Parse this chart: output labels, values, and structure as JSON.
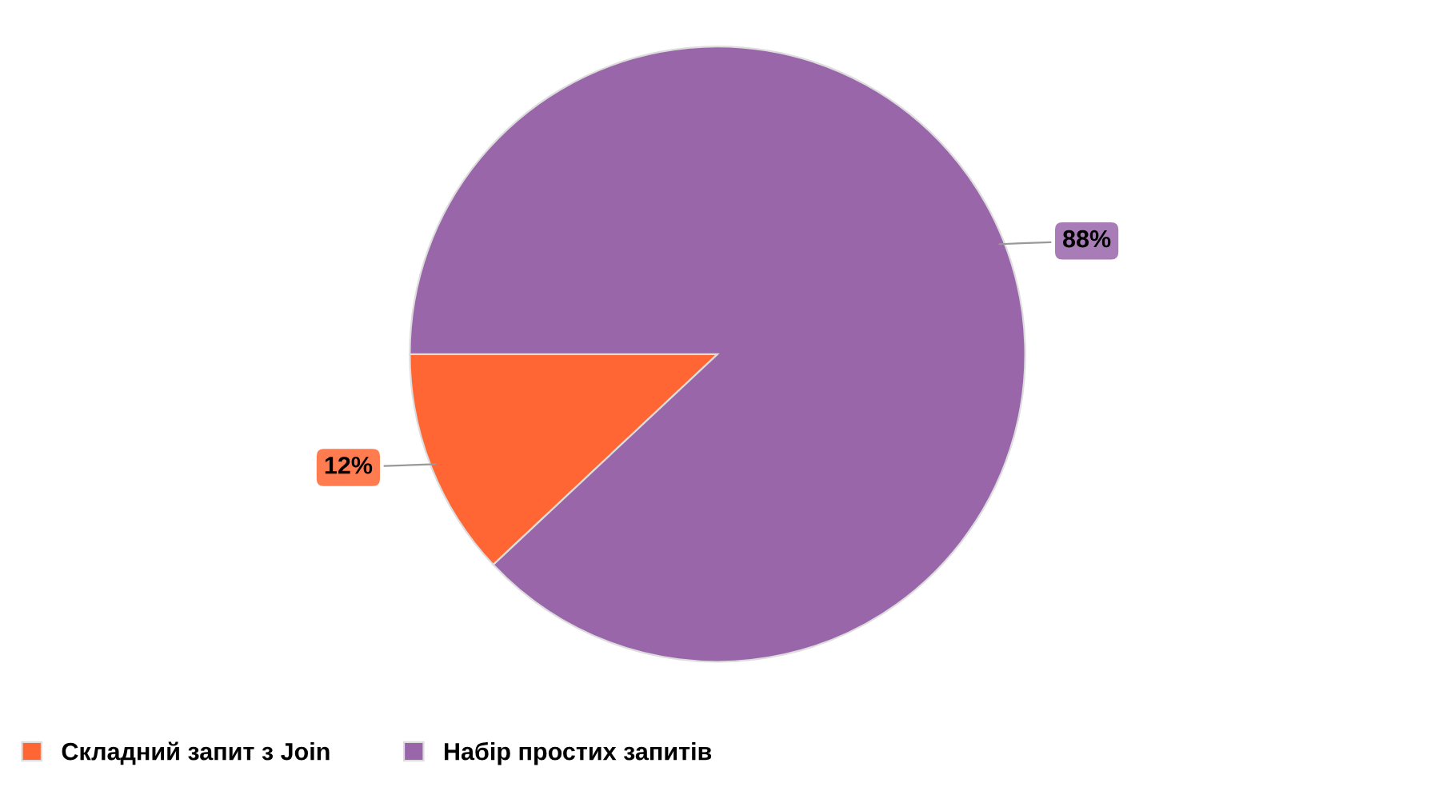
{
  "chart_data": {
    "type": "pie",
    "categories": [
      "Складний запит з Join",
      "Набір простих запитів"
    ],
    "values": [
      12,
      88
    ],
    "colors": [
      "#ff6633",
      "#9966aa"
    ],
    "value_labels": [
      "12%",
      "88%"
    ],
    "legend": "bottom"
  }
}
